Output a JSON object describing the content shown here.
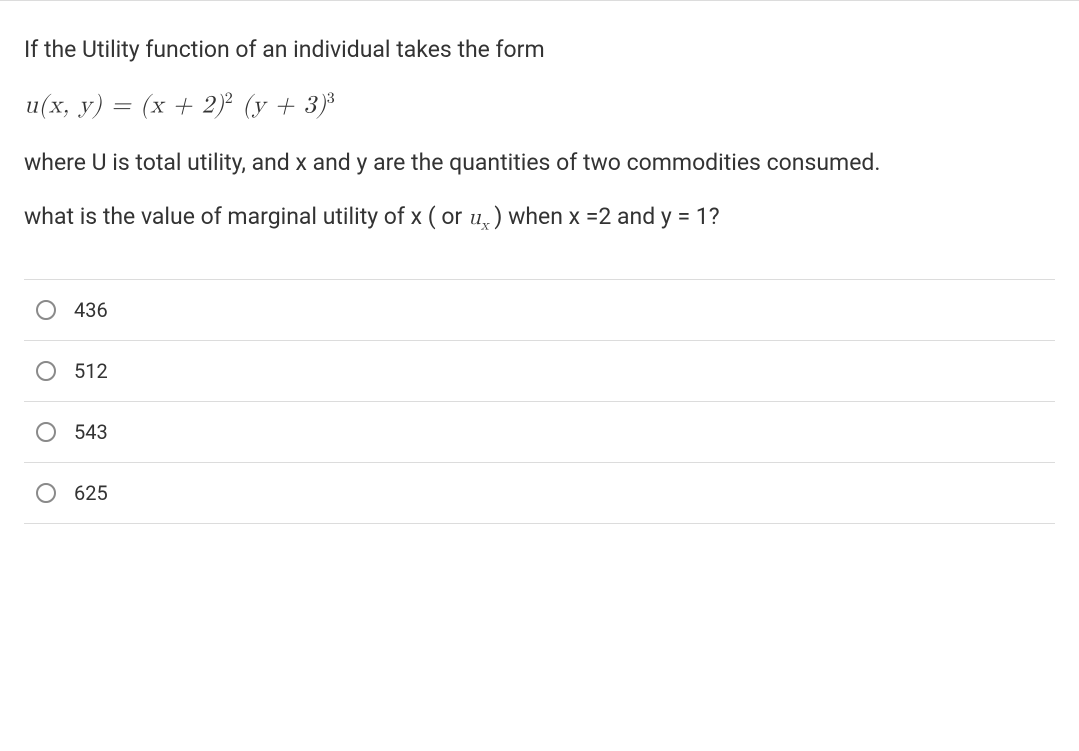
{
  "question": {
    "line1": "If the Utility function of an individual takes the form",
    "formula_html": "u(x, y) = (x + 2)<span class=\"sup\">2</span> (y + 3)<span class=\"sup\">3</span>",
    "line2": "where U is total utility, and x and y are the quantities of two commodities consumed.",
    "line3_html": "what is the value of marginal utility of x ( or <span class=\"inline-math\">u<span class=\"sub\">x</span></span> ) when x =2 and y = 1?"
  },
  "options": [
    {
      "label": "436"
    },
    {
      "label": "512"
    },
    {
      "label": "543"
    },
    {
      "label": "625"
    }
  ],
  "styles": {
    "text_color": "#333333",
    "border_color": "#dcdcdc",
    "radio_border": "#8a8a8a",
    "background": "#ffffff",
    "question_fontsize": 23,
    "formula_fontsize": 25,
    "option_fontsize": 20
  }
}
